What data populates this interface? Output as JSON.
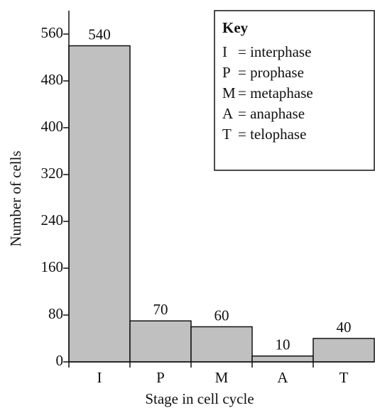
{
  "chart_data": {
    "type": "bar",
    "categories": [
      "I",
      "P",
      "M",
      "A",
      "T"
    ],
    "values": [
      540,
      70,
      60,
      10,
      40
    ],
    "color": "#c0c0c0",
    "xlabel": "Stage in cell cycle",
    "ylabel": "Number of cells",
    "ylim": [
      0,
      600
    ],
    "yticks": [
      0,
      80,
      160,
      240,
      320,
      400,
      480,
      560
    ],
    "key": {
      "title": "Key",
      "entries": [
        {
          "symbol": "I",
          "text": "= interphase"
        },
        {
          "symbol": "P",
          "text": "= prophase"
        },
        {
          "symbol": "M",
          "text": "= metaphase"
        },
        {
          "symbol": "A",
          "text": "= anaphase"
        },
        {
          "symbol": "T",
          "text": "= telophase"
        }
      ]
    }
  }
}
